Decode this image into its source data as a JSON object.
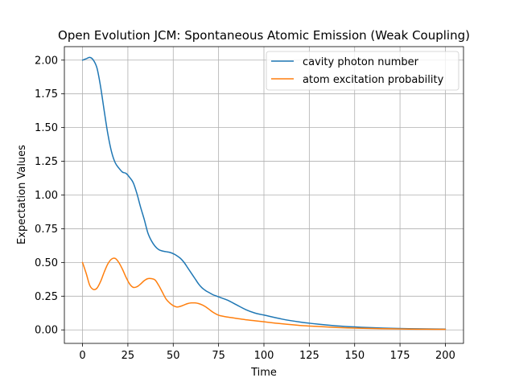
{
  "chart_data": {
    "type": "line",
    "title": "Open Evolution JCM: Spontaneous Atomic Emission (Weak Coupling)",
    "xlabel": "Time",
    "ylabel": "Expectation Values",
    "xlim": [
      -10,
      210
    ],
    "ylim": [
      -0.1,
      2.1
    ],
    "xticks": [
      0,
      25,
      50,
      75,
      100,
      125,
      150,
      175,
      200
    ],
    "xtick_labels": [
      "0",
      "25",
      "50",
      "75",
      "100",
      "125",
      "150",
      "175",
      "200"
    ],
    "yticks": [
      0.0,
      0.25,
      0.5,
      0.75,
      1.0,
      1.25,
      1.5,
      1.75,
      2.0
    ],
    "ytick_labels": [
      "0.00",
      "0.25",
      "0.50",
      "0.75",
      "1.00",
      "1.25",
      "1.50",
      "1.75",
      "2.00"
    ],
    "grid": true,
    "legend_position": "top-right",
    "series": [
      {
        "name": "cavity photon number",
        "color": "#1f77b4",
        "x": [
          0,
          2,
          4,
          6,
          8,
          10,
          12,
          14,
          16,
          18,
          20,
          22,
          24,
          26,
          28,
          30,
          32,
          34,
          36,
          38,
          40,
          42,
          44,
          46,
          48,
          50,
          52,
          54,
          56,
          58,
          60,
          62,
          64,
          66,
          68,
          70,
          72,
          74,
          76,
          80,
          85,
          90,
          95,
          100,
          110,
          120,
          130,
          140,
          150,
          160,
          170,
          180,
          190,
          200
        ],
        "y": [
          2.0,
          2.01,
          2.02,
          2.0,
          1.94,
          1.8,
          1.62,
          1.45,
          1.32,
          1.24,
          1.2,
          1.17,
          1.16,
          1.13,
          1.09,
          1.01,
          0.91,
          0.82,
          0.72,
          0.66,
          0.62,
          0.595,
          0.585,
          0.58,
          0.575,
          0.565,
          0.55,
          0.53,
          0.5,
          0.46,
          0.42,
          0.38,
          0.34,
          0.31,
          0.29,
          0.275,
          0.26,
          0.25,
          0.24,
          0.22,
          0.185,
          0.15,
          0.125,
          0.11,
          0.08,
          0.058,
          0.042,
          0.03,
          0.022,
          0.016,
          0.012,
          0.009,
          0.007,
          0.006
        ]
      },
      {
        "name": "atom excitation probability",
        "color": "#ff7f0e",
        "x": [
          0,
          2,
          4,
          6,
          8,
          10,
          12,
          14,
          16,
          18,
          20,
          22,
          24,
          26,
          28,
          30,
          32,
          34,
          36,
          38,
          40,
          42,
          44,
          46,
          48,
          50,
          52,
          54,
          56,
          58,
          60,
          62,
          64,
          66,
          68,
          70,
          72,
          74,
          76,
          80,
          85,
          90,
          95,
          100,
          110,
          120,
          130,
          140,
          150,
          160,
          170,
          180,
          190,
          200
        ],
        "y": [
          0.5,
          0.42,
          0.33,
          0.3,
          0.31,
          0.36,
          0.43,
          0.49,
          0.525,
          0.53,
          0.5,
          0.45,
          0.39,
          0.34,
          0.315,
          0.32,
          0.34,
          0.365,
          0.38,
          0.38,
          0.37,
          0.33,
          0.28,
          0.23,
          0.2,
          0.18,
          0.17,
          0.175,
          0.185,
          0.195,
          0.2,
          0.2,
          0.195,
          0.185,
          0.17,
          0.15,
          0.13,
          0.115,
          0.105,
          0.095,
          0.085,
          0.075,
          0.068,
          0.06,
          0.045,
          0.033,
          0.025,
          0.018,
          0.013,
          0.01,
          0.008,
          0.006,
          0.005,
          0.004
        ]
      }
    ]
  }
}
